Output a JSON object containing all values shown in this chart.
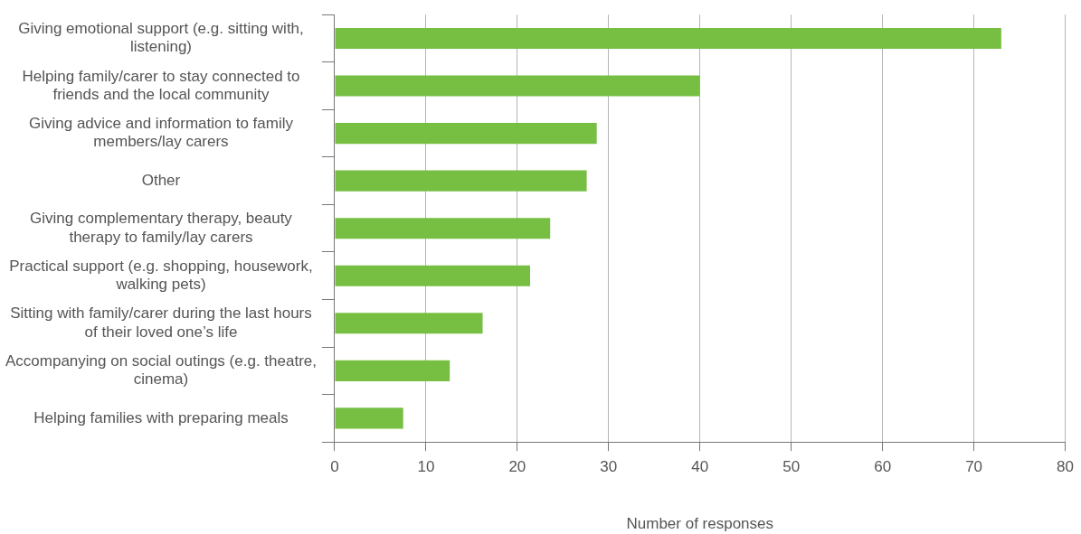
{
  "chart_data": {
    "type": "bar",
    "orientation": "horizontal",
    "xlabel": "Number of responses",
    "categories": [
      "Giving emotional support (e.g. sitting with, listening)",
      "Helping family/carer to stay connected to friends and the local community",
      "Giving advice and information to family members/lay carers",
      "Other",
      "Giving complementary therapy, beauty therapy to family/lay carers",
      "Practical support (e.g. shopping, housework, walking pets)",
      "Sitting with family/carer during the last hours of their loved one’s life",
      "Accompanying on social outings (e.g. theatre, cinema)",
      "Helping families with preparing meals"
    ],
    "values": [
      73,
      40,
      28.7,
      27.6,
      23.6,
      21.4,
      16.2,
      12.6,
      7.5
    ],
    "color": "#76bf43",
    "xlim": [
      0,
      80
    ],
    "xticks": [
      0,
      10,
      20,
      30,
      40,
      50,
      60,
      70,
      80
    ],
    "grid": "x",
    "legend": false
  }
}
